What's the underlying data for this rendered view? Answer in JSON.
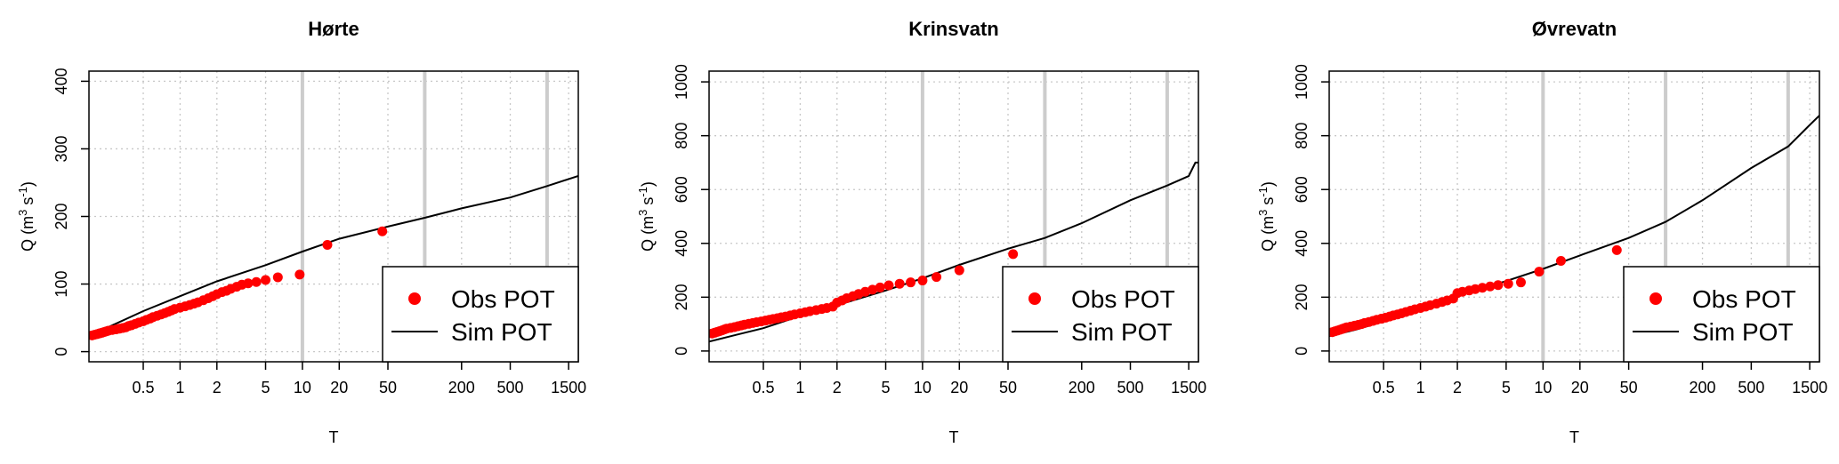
{
  "figure": {
    "colors": {
      "obs": "#ff0000",
      "sim": "#000000",
      "grid": "#c8c8c8",
      "vline": "#cccccc"
    }
  },
  "chart_data": [
    {
      "type": "scatter",
      "title": "Hørte",
      "xlabel": "T",
      "ylabel": {
        "prefix": "Q (m",
        "sup1": "3",
        "mid": " s",
        "sup2": "-1",
        "suffix": ")"
      },
      "x_scale": "log",
      "xlim": [
        0.18,
        1800
      ],
      "ylim": [
        -15,
        415
      ],
      "xticks": [
        0.5,
        1,
        2,
        5,
        10,
        20,
        50,
        200,
        500,
        1500
      ],
      "yticks": [
        0,
        100,
        200,
        300,
        400
      ],
      "reference_lines_T": [
        10,
        100,
        1000
      ],
      "legend": {
        "position": "bottom-right",
        "entries": [
          "Obs POT",
          "Sim POT"
        ]
      },
      "series": [
        {
          "name": "Obs POT",
          "marker": "point",
          "x": [
            0.19,
            0.2,
            0.21,
            0.22,
            0.23,
            0.24,
            0.25,
            0.26,
            0.28,
            0.3,
            0.32,
            0.34,
            0.36,
            0.38,
            0.4,
            0.43,
            0.46,
            0.5,
            0.53,
            0.57,
            0.6,
            0.65,
            0.7,
            0.75,
            0.8,
            0.85,
            0.9,
            1.0,
            1.1,
            1.2,
            1.3,
            1.4,
            1.55,
            1.7,
            1.85,
            2.0,
            2.2,
            2.4,
            2.6,
            2.9,
            3.2,
            3.6,
            4.2,
            5.0,
            6.3,
            9.5,
            16,
            45
          ],
          "y": [
            24,
            25,
            26,
            27,
            28,
            29,
            30,
            31,
            32,
            33,
            34,
            35,
            36,
            38,
            39,
            41,
            43,
            45,
            47,
            49,
            51,
            53,
            55,
            57,
            59,
            61,
            63,
            65,
            67,
            69,
            71,
            73,
            76,
            79,
            82,
            85,
            88,
            90,
            93,
            96,
            99,
            101,
            103,
            106,
            110,
            114,
            158,
            178
          ]
        },
        {
          "name": "Sim POT",
          "marker": "line",
          "x": [
            0.18,
            0.25,
            0.5,
            1,
            2,
            5,
            10,
            20,
            50,
            100,
            200,
            500,
            1000,
            1800
          ],
          "y": [
            24,
            35,
            60,
            82,
            104,
            128,
            148,
            167,
            185,
            198,
            212,
            228,
            245,
            260
          ]
        }
      ]
    },
    {
      "type": "scatter",
      "title": "Krinsvatn",
      "xlabel": "T",
      "ylabel": {
        "prefix": "Q (m",
        "sup1": "3",
        "mid": " s",
        "sup2": "-1",
        "suffix": ")"
      },
      "x_scale": "log",
      "xlim": [
        0.18,
        1800
      ],
      "ylim": [
        -40,
        1040
      ],
      "xticks": [
        0.5,
        1,
        2,
        5,
        10,
        20,
        50,
        200,
        500,
        1500
      ],
      "yticks": [
        0,
        200,
        400,
        600,
        800,
        1000
      ],
      "reference_lines_T": [
        10,
        100,
        1000
      ],
      "legend": {
        "position": "bottom-right",
        "entries": [
          "Obs POT",
          "Sim POT"
        ]
      },
      "series": [
        {
          "name": "Obs POT",
          "marker": "point",
          "x": [
            0.19,
            0.2,
            0.21,
            0.22,
            0.23,
            0.24,
            0.25,
            0.27,
            0.29,
            0.31,
            0.33,
            0.35,
            0.38,
            0.41,
            0.44,
            0.48,
            0.52,
            0.56,
            0.6,
            0.65,
            0.7,
            0.76,
            0.83,
            0.9,
            1.0,
            1.1,
            1.2,
            1.35,
            1.5,
            1.65,
            1.85,
            2.0,
            2.2,
            2.4,
            2.7,
            3.0,
            3.4,
            3.9,
            4.5,
            5.3,
            6.5,
            8.0,
            10,
            13,
            20,
            55
          ],
          "y": [
            65,
            68,
            71,
            74,
            77,
            80,
            83,
            86,
            89,
            92,
            95,
            98,
            101,
            104,
            107,
            110,
            113,
            116,
            119,
            122,
            125,
            128,
            132,
            136,
            140,
            144,
            148,
            152,
            156,
            160,
            165,
            180,
            188,
            196,
            204,
            212,
            220,
            228,
            236,
            244,
            250,
            255,
            262,
            275,
            300,
            360
          ]
        },
        {
          "name": "Sim POT",
          "marker": "line",
          "x": [
            0.18,
            0.3,
            0.5,
            1,
            2,
            5,
            10,
            20,
            50,
            100,
            200,
            500,
            1000,
            1500,
            1700,
            1800
          ],
          "y": [
            35,
            60,
            85,
            130,
            170,
            225,
            270,
            320,
            380,
            420,
            475,
            560,
            615,
            650,
            700,
            700
          ]
        }
      ]
    },
    {
      "type": "scatter",
      "title": "Øvrevatn",
      "xlabel": "T",
      "ylabel": {
        "prefix": "Q (m",
        "sup1": "3",
        "mid": " s",
        "sup2": "-1",
        "suffix": ")"
      },
      "x_scale": "log",
      "xlim": [
        0.18,
        1800
      ],
      "ylim": [
        -40,
        1040
      ],
      "xticks": [
        0.5,
        1,
        2,
        5,
        10,
        20,
        50,
        200,
        500,
        1500
      ],
      "yticks": [
        0,
        200,
        400,
        600,
        800,
        1000
      ],
      "reference_lines_T": [
        10,
        100,
        1000
      ],
      "legend": {
        "position": "bottom-right",
        "entries": [
          "Obs POT",
          "Sim POT"
        ]
      },
      "series": [
        {
          "name": "Obs POT",
          "marker": "point",
          "x": [
            0.19,
            0.2,
            0.21,
            0.22,
            0.23,
            0.24,
            0.25,
            0.27,
            0.29,
            0.31,
            0.33,
            0.35,
            0.38,
            0.41,
            0.44,
            0.48,
            0.52,
            0.56,
            0.6,
            0.65,
            0.7,
            0.76,
            0.83,
            0.9,
            1.0,
            1.1,
            1.2,
            1.35,
            1.5,
            1.65,
            1.85,
            2.0,
            2.2,
            2.5,
            2.8,
            3.2,
            3.7,
            4.3,
            5.2,
            6.6,
            9.3,
            14,
            40
          ],
          "y": [
            70,
            73,
            76,
            79,
            82,
            85,
            88,
            91,
            94,
            97,
            100,
            104,
            108,
            112,
            116,
            120,
            124,
            128,
            132,
            136,
            140,
            145,
            150,
            155,
            160,
            165,
            170,
            176,
            182,
            188,
            195,
            215,
            220,
            225,
            230,
            235,
            240,
            245,
            250,
            255,
            295,
            335,
            375
          ]
        },
        {
          "name": "Sim POT",
          "marker": "line",
          "x": [
            0.18,
            0.3,
            0.5,
            1,
            2,
            5,
            10,
            20,
            50,
            100,
            200,
            500,
            1000,
            1500,
            1800
          ],
          "y": [
            55,
            80,
            110,
            160,
            205,
            260,
            305,
            355,
            420,
            480,
            560,
            680,
            760,
            840,
            875
          ]
        }
      ]
    }
  ]
}
